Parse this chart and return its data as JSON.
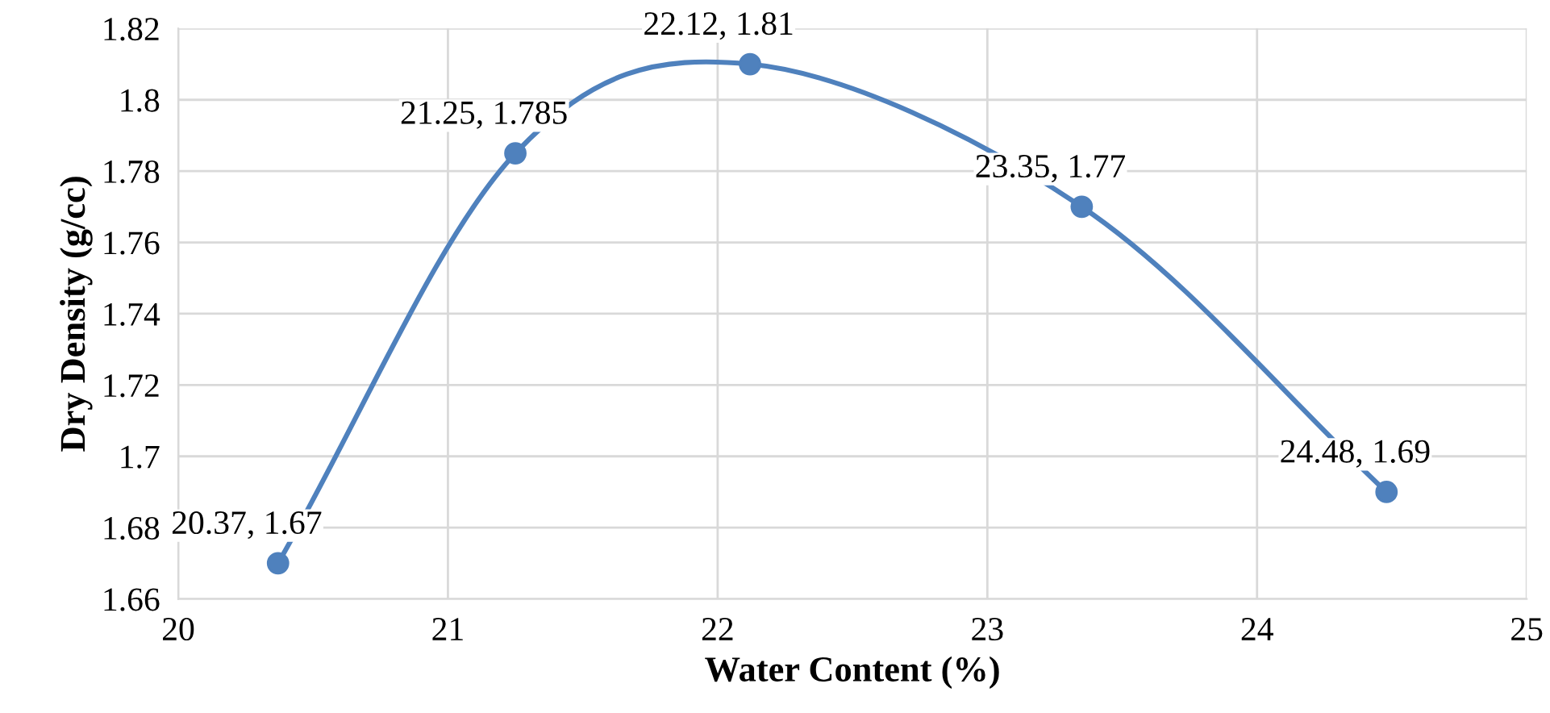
{
  "chart_data": {
    "type": "line",
    "xlabel": "Water Content (%)",
    "ylabel": "Dry Density (g/cc)",
    "series": [
      {
        "color": "#4f81bd",
        "x": [
          20.37,
          21.25,
          22.12,
          23.35,
          24.48
        ],
        "values": [
          1.67,
          1.785,
          1.81,
          1.77,
          1.69
        ],
        "value_labels": [
          "20.37, 1.67",
          "21.25, 1.785",
          "22.12, 1.81",
          "23.35, 1.77",
          "24.48, 1.69"
        ]
      }
    ],
    "xlim": [
      20,
      25
    ],
    "xticks": [
      20,
      21,
      22,
      23,
      24,
      25
    ],
    "ylim": [
      1.66,
      1.82
    ],
    "yticks": [
      1.66,
      1.68,
      1.7,
      1.72,
      1.74,
      1.76,
      1.78,
      1.8,
      1.82
    ],
    "grid": true,
    "marker": "circle",
    "line_style": "solid"
  }
}
